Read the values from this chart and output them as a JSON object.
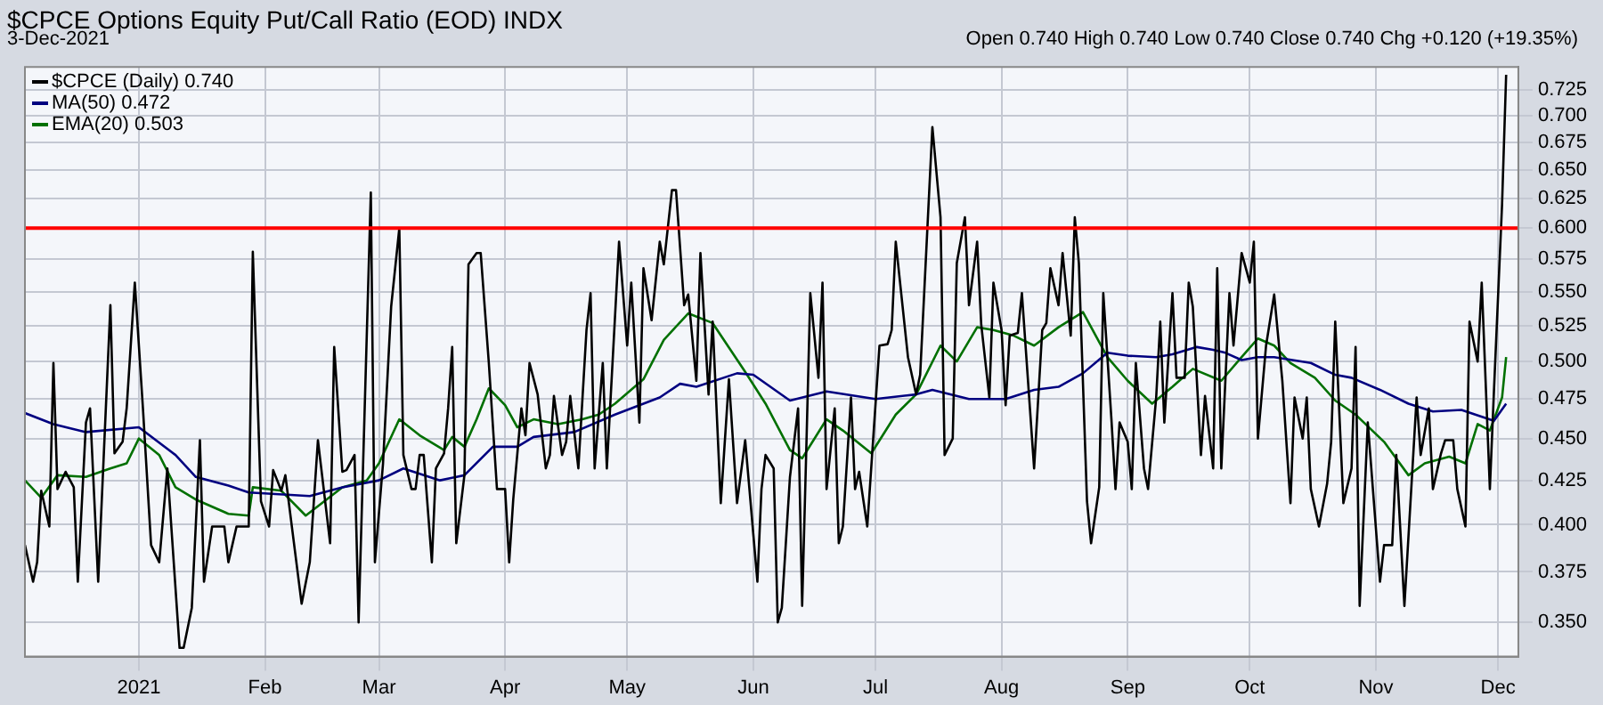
{
  "chart_data": {
    "type": "line",
    "title": "$CPCE Options Equity Put/Call Ratio (EOD) INDX",
    "subtitle": "3-Dec-2021",
    "annotations": [
      "Open 0.740  High 0.740  Low 0.740  Close 0.740  Chg +0.120 (+19.35%)"
    ],
    "log": "y",
    "grid": true,
    "legend": "top left",
    "marker": "none",
    "xlim": [
      "2020-12-04",
      "2021-12-06"
    ],
    "xticks": [
      {
        "value": "2021-01-01",
        "label": "2021"
      },
      {
        "value": "2021-02-01",
        "label": "Feb"
      },
      {
        "value": "2021-03-01",
        "label": "Mar"
      },
      {
        "value": "2021-04-01",
        "label": "Apr"
      },
      {
        "value": "2021-05-01",
        "label": "May"
      },
      {
        "value": "2021-06-01",
        "label": "Jun"
      },
      {
        "value": "2021-07-01",
        "label": "Jul"
      },
      {
        "value": "2021-08-01",
        "label": "Aug"
      },
      {
        "value": "2021-09-01",
        "label": "Sep"
      },
      {
        "value": "2021-10-01",
        "label": "Oct"
      },
      {
        "value": "2021-11-01",
        "label": "Nov"
      },
      {
        "value": "2021-12-01",
        "label": "Dec"
      }
    ],
    "ylim": [
      0.334,
      0.748
    ],
    "yticks": [
      {
        "value": 0.35,
        "label": "0.350"
      },
      {
        "value": 0.375,
        "label": "0.375"
      },
      {
        "value": 0.4,
        "label": "0.400"
      },
      {
        "value": 0.425,
        "label": "0.425"
      },
      {
        "value": 0.45,
        "label": "0.450"
      },
      {
        "value": 0.475,
        "label": "0.475"
      },
      {
        "value": 0.5,
        "label": "0.500"
      },
      {
        "value": 0.525,
        "label": "0.525"
      },
      {
        "value": 0.55,
        "label": "0.550"
      },
      {
        "value": 0.575,
        "label": "0.575"
      },
      {
        "value": 0.6,
        "label": "0.600"
      },
      {
        "value": 0.625,
        "label": "0.625"
      },
      {
        "value": 0.65,
        "label": "0.650"
      },
      {
        "value": 0.675,
        "label": "0.675"
      },
      {
        "value": 0.7,
        "label": "0.700"
      },
      {
        "value": 0.725,
        "label": "0.725"
      }
    ],
    "ref_lines": [
      {
        "axis": "y",
        "value": 0.6,
        "color": "#ff0000"
      }
    ],
    "series": [
      {
        "name": "$CPCE (Daily) 0.740",
        "color": "#000000",
        "x": [
          "2020-12-04",
          "2020-12-06",
          "2020-12-07",
          "2020-12-08",
          "2020-12-10",
          "2020-12-11",
          "2020-12-12",
          "2020-12-14",
          "2020-12-16",
          "2020-12-17",
          "2020-12-19",
          "2020-12-20",
          "2020-12-22",
          "2020-12-25",
          "2020-12-26",
          "2020-12-28",
          "2020-12-29",
          "2020-12-31",
          "2021-01-02",
          "2021-01-04",
          "2021-01-06",
          "2021-01-08",
          "2021-01-11",
          "2021-01-12",
          "2021-01-14",
          "2021-01-16",
          "2021-01-17",
          "2021-01-19",
          "2021-01-22",
          "2021-01-23",
          "2021-01-25",
          "2021-01-28",
          "2021-01-29",
          "2021-01-31",
          "2021-02-02",
          "2021-02-03",
          "2021-02-05",
          "2021-02-06",
          "2021-02-10",
          "2021-02-12",
          "2021-02-14",
          "2021-02-17",
          "2021-02-18",
          "2021-02-20",
          "2021-02-21",
          "2021-02-23",
          "2021-02-24",
          "2021-02-27",
          "2021-02-28",
          "2021-03-02",
          "2021-03-04",
          "2021-03-06",
          "2021-03-07",
          "2021-03-09",
          "2021-03-10",
          "2021-03-11",
          "2021-03-12",
          "2021-03-14",
          "2021-03-15",
          "2021-03-17",
          "2021-03-18",
          "2021-03-19",
          "2021-03-20",
          "2021-03-22",
          "2021-03-23",
          "2021-03-25",
          "2021-03-26",
          "2021-03-28",
          "2021-03-30",
          "2021-04-01",
          "2021-04-02",
          "2021-04-03",
          "2021-04-05",
          "2021-04-06",
          "2021-04-07",
          "2021-04-09",
          "2021-04-11",
          "2021-04-12",
          "2021-04-13",
          "2021-04-15",
          "2021-04-16",
          "2021-04-17",
          "2021-04-19",
          "2021-04-21",
          "2021-04-22",
          "2021-04-23",
          "2021-04-25",
          "2021-04-26",
          "2021-04-29",
          "2021-05-01",
          "2021-05-02",
          "2021-05-04",
          "2021-05-05",
          "2021-05-07",
          "2021-05-09",
          "2021-05-10",
          "2021-05-12",
          "2021-05-13",
          "2021-05-15",
          "2021-05-16",
          "2021-05-18",
          "2021-05-19",
          "2021-05-21",
          "2021-05-22",
          "2021-05-24",
          "2021-05-26",
          "2021-05-28",
          "2021-05-30",
          "2021-05-31",
          "2021-06-02",
          "2021-06-03",
          "2021-06-04",
          "2021-06-06",
          "2021-06-07",
          "2021-06-08",
          "2021-06-10",
          "2021-06-12",
          "2021-06-13",
          "2021-06-14",
          "2021-06-15",
          "2021-06-17",
          "2021-06-18",
          "2021-06-19",
          "2021-06-21",
          "2021-06-22",
          "2021-06-23",
          "2021-06-25",
          "2021-06-26",
          "2021-06-27",
          "2021-06-29",
          "2021-07-02",
          "2021-07-04",
          "2021-07-05",
          "2021-07-06",
          "2021-07-09",
          "2021-07-11",
          "2021-07-12",
          "2021-07-15",
          "2021-07-17",
          "2021-07-18",
          "2021-07-20",
          "2021-07-21",
          "2021-07-23",
          "2021-07-24",
          "2021-07-26",
          "2021-07-27",
          "2021-07-29",
          "2021-07-30",
          "2021-08-01",
          "2021-08-02",
          "2021-08-03",
          "2021-08-05",
          "2021-08-06",
          "2021-08-09",
          "2021-08-11",
          "2021-08-12",
          "2021-08-13",
          "2021-08-15",
          "2021-08-16",
          "2021-08-18",
          "2021-08-19",
          "2021-08-20",
          "2021-08-22",
          "2021-08-23",
          "2021-08-25",
          "2021-08-26",
          "2021-08-28",
          "2021-08-29",
          "2021-08-30",
          "2021-09-01",
          "2021-09-02",
          "2021-09-03",
          "2021-09-05",
          "2021-09-06",
          "2021-09-08",
          "2021-09-09",
          "2021-09-10",
          "2021-09-12",
          "2021-09-13",
          "2021-09-15",
          "2021-09-16",
          "2021-09-17",
          "2021-09-19",
          "2021-09-20",
          "2021-09-22",
          "2021-09-23",
          "2021-09-24",
          "2021-09-26",
          "2021-09-27",
          "2021-09-29",
          "2021-10-01",
          "2021-10-02",
          "2021-10-03",
          "2021-10-05",
          "2021-10-07",
          "2021-10-09",
          "2021-10-11",
          "2021-10-12",
          "2021-10-14",
          "2021-10-15",
          "2021-10-16",
          "2021-10-18",
          "2021-10-20",
          "2021-10-21",
          "2021-10-22",
          "2021-10-24",
          "2021-10-26",
          "2021-10-27",
          "2021-10-28",
          "2021-10-30",
          "2021-11-02",
          "2021-11-03",
          "2021-11-05",
          "2021-11-06",
          "2021-11-08",
          "2021-11-11",
          "2021-11-12",
          "2021-11-14",
          "2021-11-15",
          "2021-11-17",
          "2021-11-18",
          "2021-11-20",
          "2021-11-21",
          "2021-11-23",
          "2021-11-24",
          "2021-11-26",
          "2021-11-27",
          "2021-11-29",
          "2021-11-30",
          "2021-12-02",
          "2021-12-03"
        ],
        "values": [
          0.389,
          0.37,
          0.38,
          0.419,
          0.399,
          0.499,
          0.42,
          0.43,
          0.421,
          0.37,
          0.46,
          0.469,
          0.37,
          0.54,
          0.441,
          0.448,
          0.469,
          0.557,
          0.469,
          0.389,
          0.38,
          0.432,
          0.338,
          0.338,
          0.357,
          0.449,
          0.37,
          0.399,
          0.399,
          0.38,
          0.399,
          0.399,
          0.581,
          0.413,
          0.399,
          0.431,
          0.419,
          0.428,
          0.359,
          0.38,
          0.449,
          0.39,
          0.51,
          0.43,
          0.431,
          0.44,
          0.35,
          0.63,
          0.38,
          0.435,
          0.539,
          0.6,
          0.44,
          0.42,
          0.42,
          0.44,
          0.44,
          0.38,
          0.432,
          0.441,
          0.469,
          0.51,
          0.39,
          0.428,
          0.571,
          0.58,
          0.58,
          0.499,
          0.42,
          0.42,
          0.38,
          0.414,
          0.469,
          0.452,
          0.499,
          0.478,
          0.432,
          0.44,
          0.477,
          0.44,
          0.448,
          0.477,
          0.432,
          0.522,
          0.549,
          0.432,
          0.499,
          0.432,
          0.589,
          0.511,
          0.557,
          0.46,
          0.568,
          0.529,
          0.589,
          0.571,
          0.632,
          0.632,
          0.54,
          0.548,
          0.487,
          0.58,
          0.478,
          0.528,
          0.412,
          0.488,
          0.412,
          0.449,
          0.421,
          0.37,
          0.42,
          0.44,
          0.432,
          0.35,
          0.357,
          0.427,
          0.469,
          0.358,
          0.442,
          0.549,
          0.489,
          0.557,
          0.42,
          0.469,
          0.39,
          0.399,
          0.476,
          0.42,
          0.43,
          0.399,
          0.511,
          0.512,
          0.522,
          0.589,
          0.503,
          0.478,
          0.491,
          0.689,
          0.609,
          0.44,
          0.45,
          0.572,
          0.609,
          0.54,
          0.589,
          0.526,
          0.476,
          0.557,
          0.522,
          0.471,
          0.518,
          0.52,
          0.549,
          0.432,
          0.522,
          0.527,
          0.568,
          0.54,
          0.58,
          0.518,
          0.609,
          0.572,
          0.413,
          0.39,
          0.421,
          0.549,
          0.462,
          0.42,
          0.46,
          0.448,
          0.42,
          0.499,
          0.432,
          0.42,
          0.476,
          0.528,
          0.46,
          0.549,
          0.489,
          0.489,
          0.557,
          0.539,
          0.44,
          0.477,
          0.432,
          0.568,
          0.432,
          0.549,
          0.511,
          0.58,
          0.557,
          0.589,
          0.45,
          0.511,
          0.548,
          0.487,
          0.412,
          0.476,
          0.45,
          0.476,
          0.42,
          0.399,
          0.423,
          0.448,
          0.528,
          0.412,
          0.432,
          0.51,
          0.358,
          0.46,
          0.37,
          0.389,
          0.389,
          0.44,
          0.358,
          0.476,
          0.44,
          0.469,
          0.42,
          0.441,
          0.449,
          0.449,
          0.42,
          0.399,
          0.528,
          0.5,
          0.557,
          0.42,
          0.48,
          0.62,
          0.74
        ]
      },
      {
        "name": "MA(50) 0.472",
        "color": "#000080",
        "x": [
          "2020-12-04",
          "2020-12-11",
          "2020-12-19",
          "2021-01-01",
          "2021-01-10",
          "2021-01-15",
          "2021-01-23",
          "2021-01-28",
          "2021-02-12",
          "2021-02-20",
          "2021-03-01",
          "2021-03-07",
          "2021-03-16",
          "2021-03-22",
          "2021-03-29",
          "2021-04-04",
          "2021-04-08",
          "2021-04-18",
          "2021-04-28",
          "2021-05-09",
          "2021-05-14",
          "2021-05-18",
          "2021-05-28",
          "2021-06-01",
          "2021-06-10",
          "2021-06-19",
          "2021-07-01",
          "2021-07-11",
          "2021-07-15",
          "2021-07-24",
          "2021-08-02",
          "2021-08-09",
          "2021-08-15",
          "2021-08-21",
          "2021-08-27",
          "2021-09-01",
          "2021-09-08",
          "2021-09-12",
          "2021-09-18",
          "2021-09-22",
          "2021-09-25",
          "2021-09-29",
          "2021-10-03",
          "2021-10-07",
          "2021-10-16",
          "2021-10-22",
          "2021-10-26",
          "2021-11-02",
          "2021-11-09",
          "2021-11-15",
          "2021-11-22",
          "2021-11-30",
          "2021-12-03"
        ],
        "values": [
          0.466,
          0.459,
          0.454,
          0.457,
          0.44,
          0.427,
          0.422,
          0.418,
          0.416,
          0.421,
          0.425,
          0.432,
          0.425,
          0.428,
          0.445,
          0.445,
          0.451,
          0.454,
          0.465,
          0.476,
          0.485,
          0.483,
          0.492,
          0.491,
          0.474,
          0.48,
          0.475,
          0.478,
          0.481,
          0.475,
          0.475,
          0.481,
          0.483,
          0.492,
          0.506,
          0.504,
          0.503,
          0.505,
          0.51,
          0.508,
          0.506,
          0.501,
          0.503,
          0.503,
          0.499,
          0.491,
          0.489,
          0.481,
          0.472,
          0.467,
          0.468,
          0.461,
          0.472
        ]
      },
      {
        "name": "EMA(20) 0.503",
        "color": "#007000",
        "x": [
          "2020-12-04",
          "2020-12-08",
          "2020-12-12",
          "2020-12-19",
          "2020-12-25",
          "2020-12-29",
          "2021-01-01",
          "2021-01-06",
          "2021-01-10",
          "2021-01-15",
          "2021-01-23",
          "2021-01-28",
          "2021-01-29",
          "2021-02-05",
          "2021-02-11",
          "2021-02-20",
          "2021-02-26",
          "2021-03-01",
          "2021-03-06",
          "2021-03-11",
          "2021-03-17",
          "2021-03-19",
          "2021-03-22",
          "2021-03-25",
          "2021-03-28",
          "2021-04-01",
          "2021-04-04",
          "2021-04-08",
          "2021-04-14",
          "2021-04-20",
          "2021-04-24",
          "2021-04-28",
          "2021-05-05",
          "2021-05-10",
          "2021-05-16",
          "2021-05-22",
          "2021-05-30",
          "2021-06-04",
          "2021-06-10",
          "2021-06-13",
          "2021-06-19",
          "2021-06-23",
          "2021-06-30",
          "2021-07-06",
          "2021-07-11",
          "2021-07-17",
          "2021-07-21",
          "2021-07-26",
          "2021-07-30",
          "2021-08-04",
          "2021-08-09",
          "2021-08-15",
          "2021-08-21",
          "2021-08-27",
          "2021-09-01",
          "2021-09-07",
          "2021-09-12",
          "2021-09-17",
          "2021-09-24",
          "2021-09-29",
          "2021-10-03",
          "2021-10-07",
          "2021-10-11",
          "2021-10-17",
          "2021-10-22",
          "2021-10-27",
          "2021-11-03",
          "2021-11-09",
          "2021-11-13",
          "2021-11-19",
          "2021-11-23",
          "2021-11-26",
          "2021-11-29",
          "2021-12-02",
          "2021-12-03"
        ],
        "values": [
          0.425,
          0.415,
          0.428,
          0.427,
          0.432,
          0.435,
          0.45,
          0.44,
          0.421,
          0.414,
          0.406,
          0.405,
          0.421,
          0.419,
          0.405,
          0.421,
          0.425,
          0.435,
          0.462,
          0.452,
          0.443,
          0.451,
          0.445,
          0.462,
          0.482,
          0.471,
          0.457,
          0.462,
          0.459,
          0.462,
          0.465,
          0.472,
          0.488,
          0.515,
          0.534,
          0.527,
          0.493,
          0.472,
          0.443,
          0.438,
          0.462,
          0.455,
          0.441,
          0.465,
          0.478,
          0.511,
          0.5,
          0.524,
          0.522,
          0.518,
          0.511,
          0.524,
          0.535,
          0.503,
          0.487,
          0.472,
          0.483,
          0.495,
          0.487,
          0.503,
          0.516,
          0.511,
          0.499,
          0.489,
          0.474,
          0.465,
          0.448,
          0.428,
          0.435,
          0.439,
          0.435,
          0.459,
          0.455,
          0.476,
          0.503
        ]
      }
    ]
  }
}
